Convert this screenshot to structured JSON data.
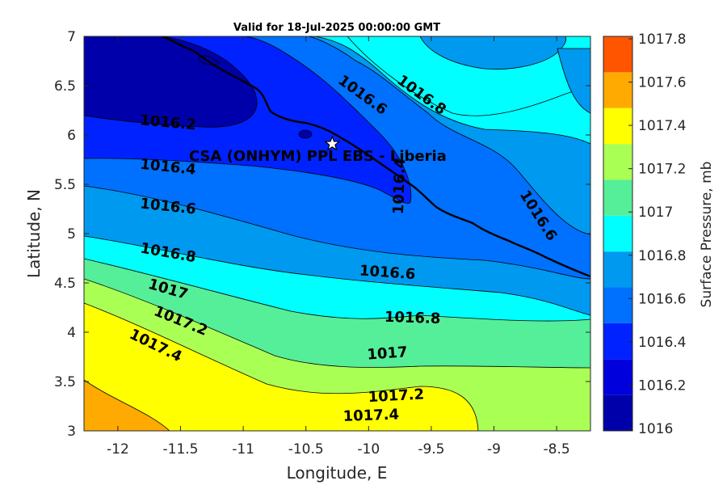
{
  "chart_data": {
    "type": "contour",
    "title": "Valid for 18-Jul-2025 00:00:00 GMT",
    "xlabel": "Longitude, E",
    "ylabel": "Latitude, N",
    "xlim": [
      -12.27,
      -8.23
    ],
    "ylim": [
      3,
      7
    ],
    "xticks": [
      -12,
      -11.5,
      -11,
      -10.5,
      -10,
      -9.5,
      -9,
      -8.5
    ],
    "yticks": [
      3,
      3.5,
      4,
      4.5,
      5,
      5.5,
      6,
      6.5,
      7
    ],
    "xtick_labels": [
      "-12",
      "-11.5",
      "-11",
      "-10.5",
      "-10",
      "-9.5",
      "-9",
      "-8.5"
    ],
    "ytick_labels": [
      "3",
      "3.5",
      "4",
      "4.5",
      "5",
      "5.5",
      "6",
      "6.5",
      "7"
    ],
    "colorbar": {
      "label": "Surface Pressure, mb",
      "levels": [
        1016,
        1016.2,
        1016.4,
        1016.6,
        1016.8,
        1017,
        1017.2,
        1017.4,
        1017.6,
        1017.8
      ],
      "tick_labels": [
        "1016",
        "1016.2",
        "1016.4",
        "1016.6",
        "1016.8",
        "1017",
        "1017.2",
        "1017.4",
        "1017.6",
        "1017.8"
      ],
      "colors": [
        "#0000aa",
        "#0000dd",
        "#0022ff",
        "#0070ff",
        "#0099f0",
        "#00ffff",
        "#55ee99",
        "#aaff55",
        "#ffff00",
        "#ffaa00",
        "#ff5500"
      ]
    },
    "contour_labels": [
      {
        "text": "1016.2",
        "lon": -11.6,
        "lat": 6.12,
        "angle": 5
      },
      {
        "text": "1016.4",
        "lon": -11.6,
        "lat": 5.67,
        "angle": 6
      },
      {
        "text": "1016.6",
        "lon": -11.6,
        "lat": 5.27,
        "angle": 6
      },
      {
        "text": "1016.8",
        "lon": -11.6,
        "lat": 4.8,
        "angle": 10
      },
      {
        "text": "1017",
        "lon": -11.6,
        "lat": 4.43,
        "angle": 16
      },
      {
        "text": "1017.2",
        "lon": -11.5,
        "lat": 4.11,
        "angle": 22
      },
      {
        "text": "1017.4",
        "lon": -11.7,
        "lat": 3.86,
        "angle": 26
      },
      {
        "text": "1016.6",
        "lon": -9.85,
        "lat": 4.6,
        "angle": 4
      },
      {
        "text": "1016.8",
        "lon": -9.65,
        "lat": 4.14,
        "angle": 2
      },
      {
        "text": "1017",
        "lon": -9.85,
        "lat": 3.78,
        "angle": -4
      },
      {
        "text": "1017.2",
        "lon": -9.78,
        "lat": 3.35,
        "angle": -3
      },
      {
        "text": "1017.4",
        "lon": -9.98,
        "lat": 3.15,
        "angle": -2
      },
      {
        "text": "1016.6",
        "lon": -10.05,
        "lat": 6.4,
        "angle": 36
      },
      {
        "text": "1016.8",
        "lon": -9.58,
        "lat": 6.4,
        "angle": 36
      },
      {
        "text": "1016.4",
        "lon": -9.75,
        "lat": 5.48,
        "angle": -88
      },
      {
        "text": "1016.6",
        "lon": -8.65,
        "lat": 5.18,
        "angle": 58
      }
    ],
    "station": {
      "label": "CSA (ONHYM) PPL EBS  - Liberia",
      "lon": -10.29,
      "lat": 5.91,
      "marker": "star"
    }
  }
}
